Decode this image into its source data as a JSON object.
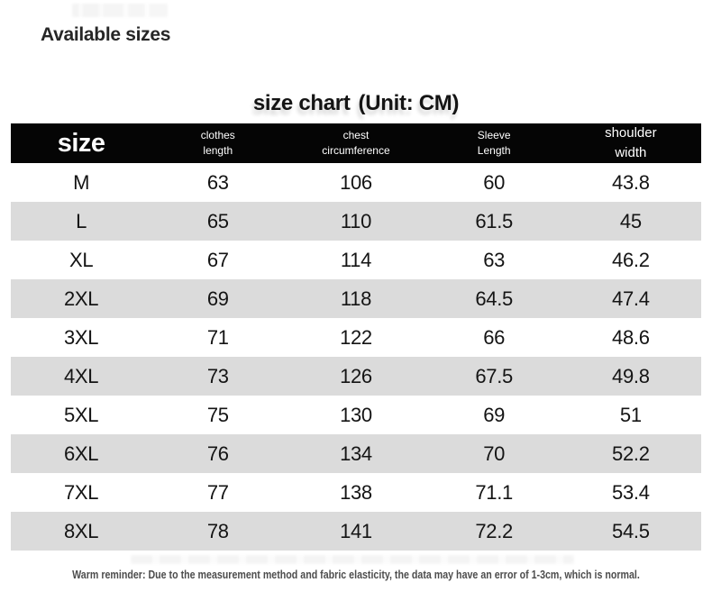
{
  "page": {
    "heading": "Available sizes",
    "title": "size chart",
    "unit_label": "(Unit: CM)",
    "reminder": "Warm reminder: Due to the measurement method and fabric elasticity, the data may have an error of 1-3cm, which is normal."
  },
  "table": {
    "headers": [
      {
        "line1": "size",
        "line2": ""
      },
      {
        "line1": "clothes",
        "line2": "length"
      },
      {
        "line1": "chest",
        "line2": "circumference"
      },
      {
        "line1": "Sleeve",
        "line2": "Length"
      },
      {
        "line1": "shoulder",
        "line2": "width"
      }
    ]
  },
  "chart_data": {
    "type": "table",
    "title": "size chart (Unit: CM)",
    "unit": "CM",
    "columns": [
      "size",
      "clothes length",
      "chest circumference",
      "Sleeve Length",
      "shoulder width"
    ],
    "rows": [
      [
        "M",
        "63",
        "106",
        "60",
        "43.8"
      ],
      [
        "L",
        "65",
        "110",
        "61.5",
        "45"
      ],
      [
        "XL",
        "67",
        "114",
        "63",
        "46.2"
      ],
      [
        "2XL",
        "69",
        "118",
        "64.5",
        "47.4"
      ],
      [
        "3XL",
        "71",
        "122",
        "66",
        "48.6"
      ],
      [
        "4XL",
        "73",
        "126",
        "67.5",
        "49.8"
      ],
      [
        "5XL",
        "75",
        "130",
        "69",
        "51"
      ],
      [
        "6XL",
        "76",
        "134",
        "70",
        "52.2"
      ],
      [
        "7XL",
        "77",
        "138",
        "71.1",
        "53.4"
      ],
      [
        "8XL",
        "78",
        "141",
        "72.2",
        "54.5"
      ]
    ]
  },
  "colors": {
    "header_bg": "#050505",
    "header_text": "#ffffff",
    "row_alt_bg": "#dbdbdb",
    "body_text": "#141414",
    "reminder_text": "#4d4d4d"
  }
}
